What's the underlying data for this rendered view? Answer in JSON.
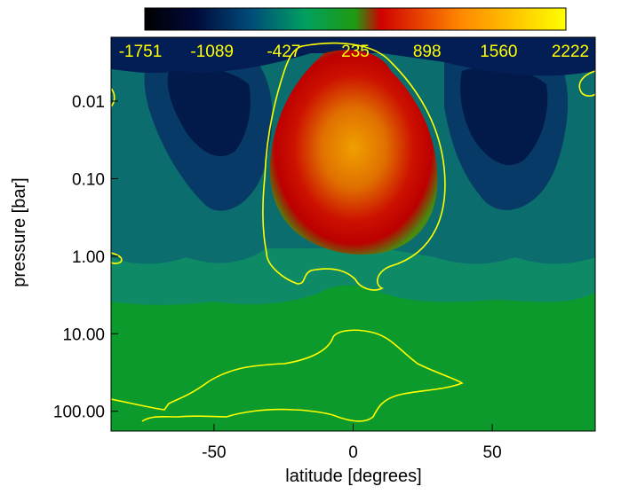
{
  "chart_data": {
    "type": "heatmap",
    "subtype": "filled-contour",
    "xlabel": "latitude [degrees]",
    "ylabel": "pressure [bar]",
    "x_ticks": [
      -50,
      0,
      50
    ],
    "x_tick_labels": [
      "-50",
      "0",
      "50"
    ],
    "xlim": [
      -87,
      87
    ],
    "y_scale": "log",
    "y_reversed": true,
    "y_ticks": [
      0.01,
      0.1,
      1,
      10,
      100
    ],
    "y_tick_labels": [
      "0.01",
      "0.10",
      "1.00",
      "10.00",
      "100.00"
    ],
    "ylim": [
      0.0015,
      180
    ],
    "colorbar": {
      "orientation": "horizontal",
      "position": "top",
      "colormap": [
        "#000000",
        "#001a66",
        "#00a855",
        "#0a9922",
        "#cc0000",
        "#ff7700",
        "#ffff00"
      ],
      "tick_labels": [
        "-1751",
        "-1089",
        "-427",
        "235",
        "898",
        "1560",
        "2222"
      ]
    },
    "contour_line_color": "#ffff00",
    "grid": false
  }
}
